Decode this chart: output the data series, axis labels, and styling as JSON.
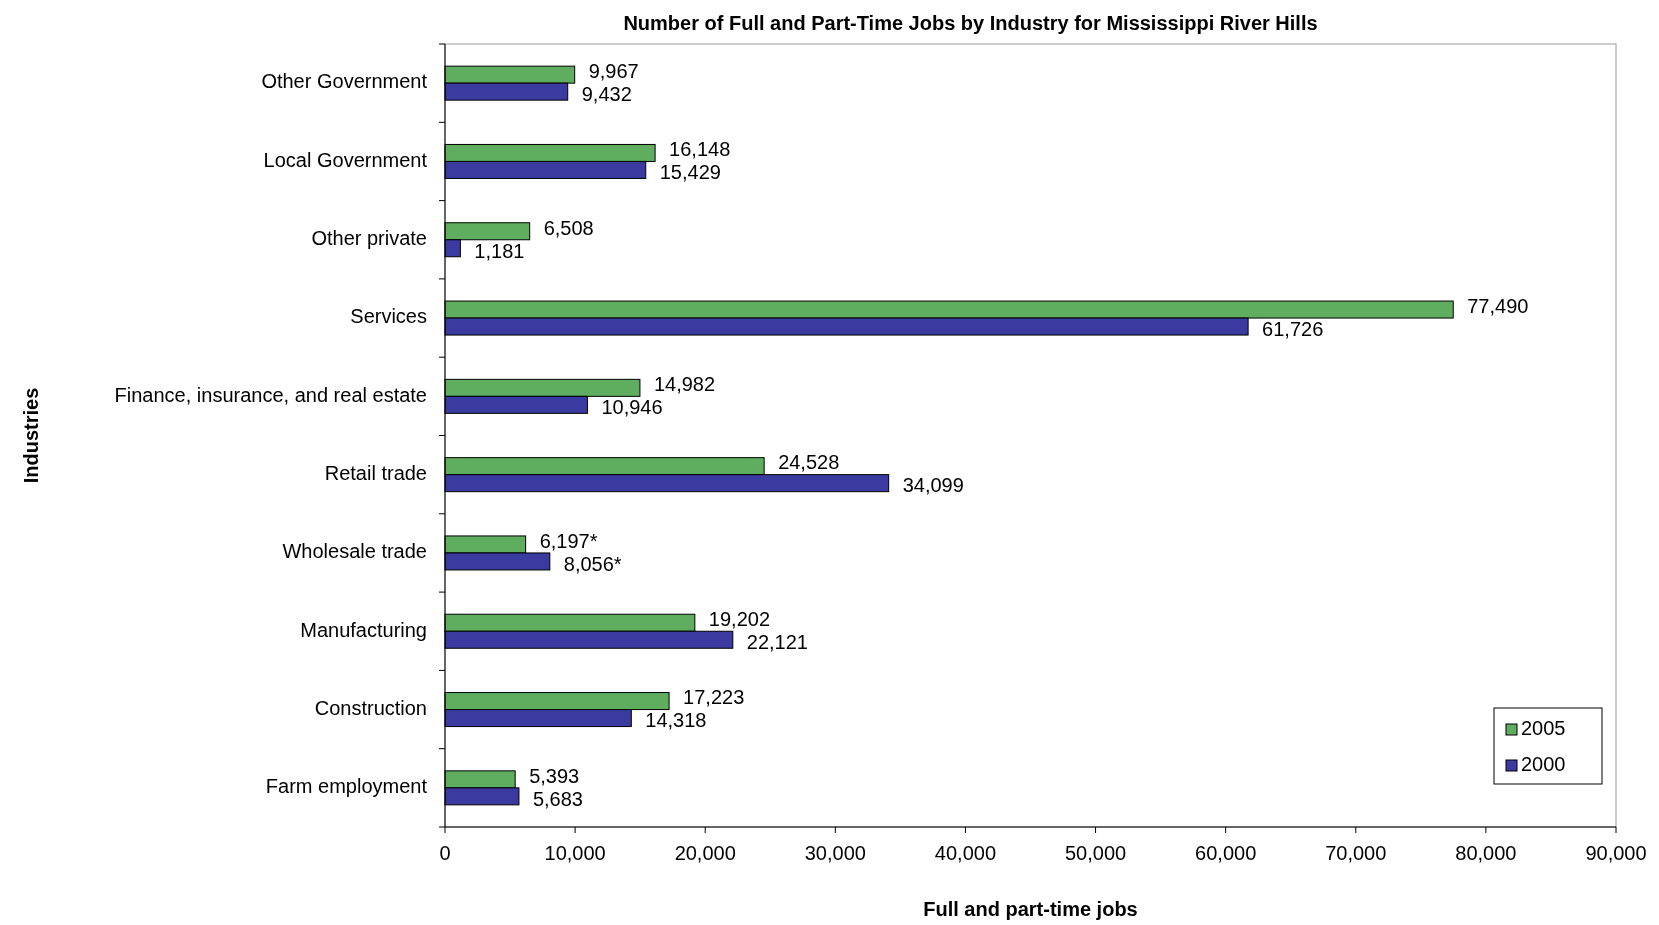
{
  "chart_data": {
    "type": "bar",
    "orientation": "horizontal",
    "title": "Number of Full and Part-Time Jobs by Industry for Mississippi River Hills",
    "xlabel": "Full and part-time  jobs",
    "ylabel": "Industries",
    "categories": [
      "Other Government",
      "Local Government",
      "Other private",
      "Services",
      "Finance, insurance,  and real estate",
      "Retail trade",
      "Wholesale trade",
      "Manufacturing",
      "Construction",
      "Farm employment"
    ],
    "series": [
      {
        "name": "2005",
        "color": "#5fae5f",
        "values": [
          9967,
          16148,
          6508,
          77490,
          14982,
          24528,
          6197,
          19202,
          17223,
          5393
        ],
        "value_labels": [
          "9,967",
          "16,148",
          "6,508",
          "77,490",
          "14,982",
          "24,528",
          "6,197*",
          "19,202",
          "17,223",
          "5,393"
        ]
      },
      {
        "name": "2000",
        "color": "#3a3aa0",
        "values": [
          9432,
          15429,
          1181,
          61726,
          10946,
          34099,
          8056,
          22121,
          14318,
          5683
        ],
        "value_labels": [
          "9,432",
          "15,429",
          "1,181",
          "61,726",
          "10,946",
          "34,099",
          "8,056*",
          "22,121",
          "14,318",
          "5,683"
        ]
      }
    ],
    "xlim": [
      0,
      90000
    ],
    "xticks": [
      {
        "value": 0,
        "label": "0"
      },
      {
        "value": 10000,
        "label": "10,000"
      },
      {
        "value": 20000,
        "label": "20,000"
      },
      {
        "value": 30000,
        "label": "30,000"
      },
      {
        "value": 40000,
        "label": "40,000"
      },
      {
        "value": 50000,
        "label": "50,000"
      },
      {
        "value": 60000,
        "label": "60,000"
      },
      {
        "value": 70000,
        "label": "70,000"
      },
      {
        "value": 80000,
        "label": "80,000"
      },
      {
        "value": 90000,
        "label": "90,000"
      }
    ],
    "legend": "bottom right"
  }
}
